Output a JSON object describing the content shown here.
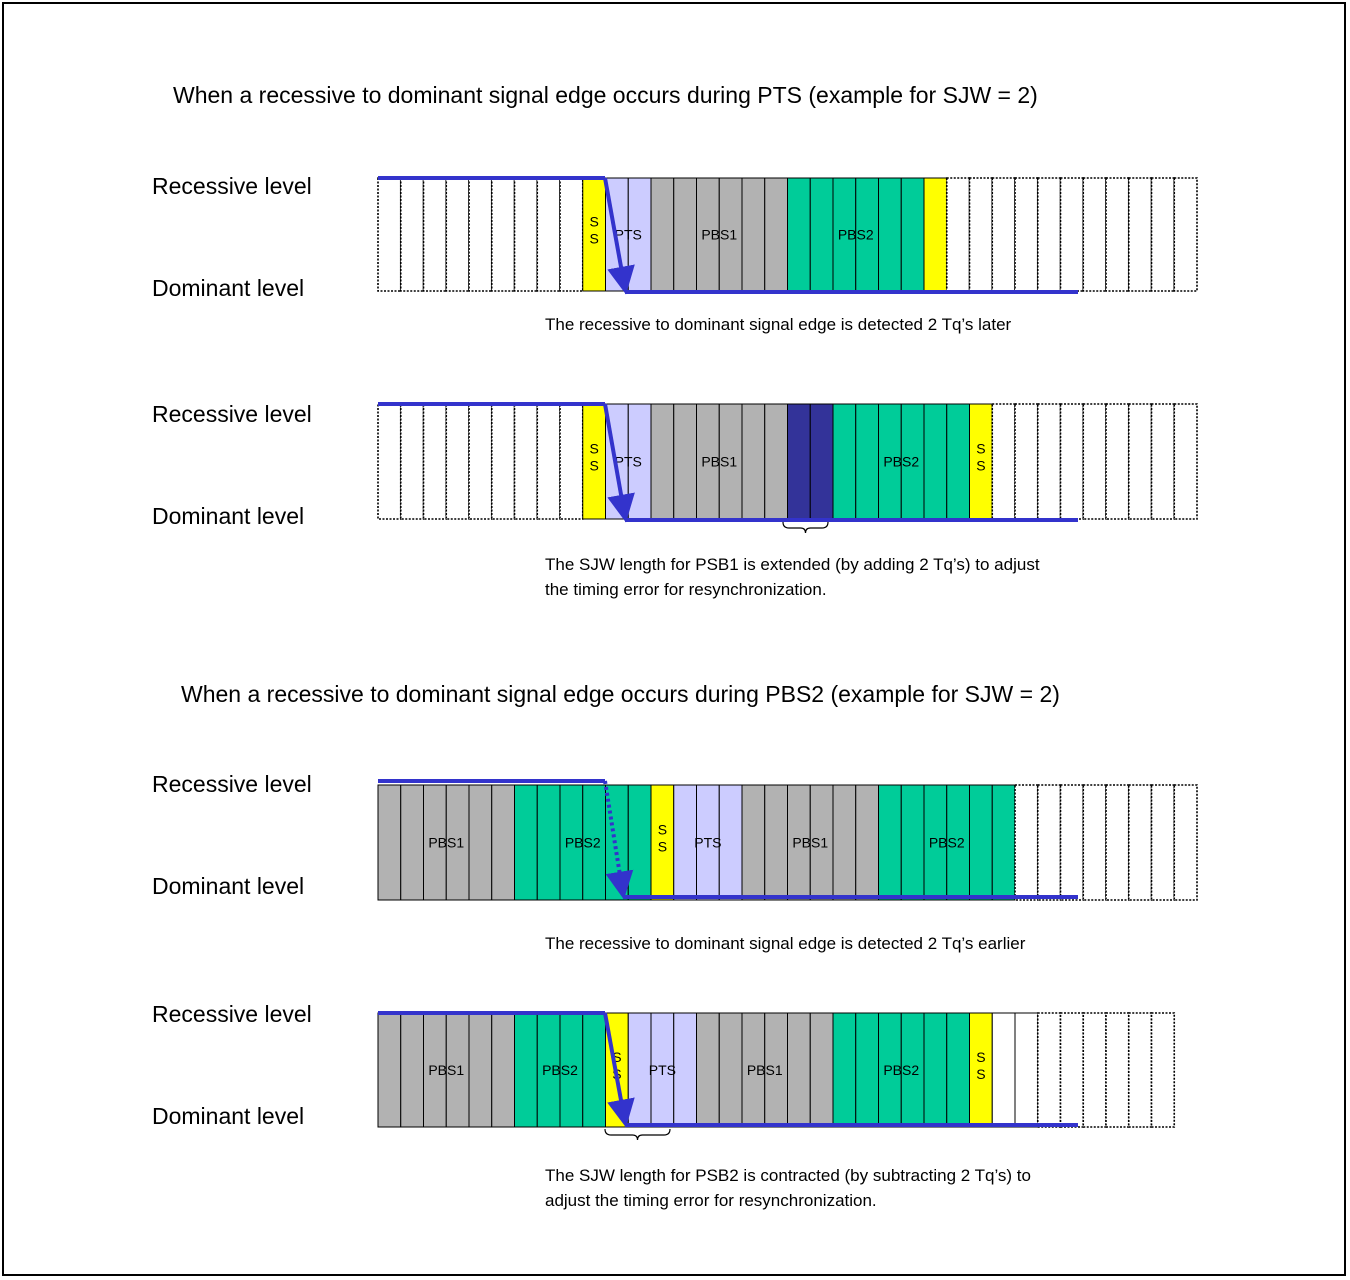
{
  "colors": {
    "recessive": "#ffffff",
    "ss": "#ffff00",
    "pts": "#ccccff",
    "pbs1": "#b2b2b2",
    "pbs2": "#00cc99",
    "sjw_extension": "#333399",
    "signal": "#3333cc"
  },
  "sections": [
    {
      "title": "When a recessive to dominant signal edge occurs during PTS (example for SJW = 2)",
      "panels": [
        {
          "recessive_label": "Recessive level",
          "dominant_label": "Dominant level",
          "caption": "The recessive to dominant signal edge is detected 2 Tq’s later",
          "has_brace": false,
          "segments": [
            {
              "kind": "blank",
              "cells": 9,
              "label": ""
            },
            {
              "kind": "ss",
              "cells": 1,
              "label": "S\nS"
            },
            {
              "kind": "pts",
              "cells": 2,
              "label": "PTS"
            },
            {
              "kind": "pbs1",
              "cells": 6,
              "label": "PBS1"
            },
            {
              "kind": "pbs2",
              "cells": 6,
              "label": "PBS2"
            },
            {
              "kind": "ss",
              "cells": 1,
              "label": ""
            },
            {
              "kind": "blank",
              "cells": 11,
              "label": ""
            }
          ]
        },
        {
          "recessive_label": "Recessive level",
          "dominant_label": "Dominant level",
          "caption": "The SJW length for PSB1 is extended (by adding 2 Tq’s) to adjust\nthe timing error for resynchronization.",
          "has_brace": true,
          "segments": [
            {
              "kind": "blank",
              "cells": 9,
              "label": ""
            },
            {
              "kind": "ss",
              "cells": 1,
              "label": "S\nS"
            },
            {
              "kind": "pts",
              "cells": 2,
              "label": "PTS"
            },
            {
              "kind": "pbs1",
              "cells": 6,
              "label": "PBS1"
            },
            {
              "kind": "sjw",
              "cells": 2,
              "label": ""
            },
            {
              "kind": "pbs2",
              "cells": 6,
              "label": "PBS2"
            },
            {
              "kind": "ss",
              "cells": 1,
              "label": "S\nS"
            },
            {
              "kind": "blank",
              "cells": 9,
              "label": ""
            }
          ]
        }
      ]
    },
    {
      "title": "When a recessive to dominant signal edge occurs during PBS2 (example for SJW = 2)",
      "panels": [
        {
          "recessive_label": "Recessive level",
          "dominant_label": "Dominant level",
          "caption": "The recessive to dominant signal edge is detected 2 Tq’s earlier",
          "has_brace": false,
          "segments": [
            {
              "kind": "pbs1",
              "cells": 6,
              "label": "PBS1"
            },
            {
              "kind": "pbs2",
              "cells": 6,
              "label": "PBS2"
            },
            {
              "kind": "ss",
              "cells": 1,
              "label": "S\nS"
            },
            {
              "kind": "pts",
              "cells": 3,
              "label": "PTS"
            },
            {
              "kind": "pbs1",
              "cells": 6,
              "label": "PBS1"
            },
            {
              "kind": "pbs2",
              "cells": 6,
              "label": "PBS2"
            },
            {
              "kind": "blank",
              "cells": 8,
              "label": ""
            }
          ]
        },
        {
          "recessive_label": "Recessive level",
          "dominant_label": "Dominant level",
          "caption": "The SJW length for PSB2 is contracted (by subtracting 2 Tq’s) to\nadjust the timing error for resynchronization.",
          "has_brace": true,
          "segments": [
            {
              "kind": "pbs1",
              "cells": 6,
              "label": "PBS1"
            },
            {
              "kind": "pbs2",
              "cells": 4,
              "label": "PBS2"
            },
            {
              "kind": "ss",
              "cells": 1,
              "label": "S\nS"
            },
            {
              "kind": "pts",
              "cells": 3,
              "label": "PTS"
            },
            {
              "kind": "pbs1",
              "cells": 6,
              "label": "PBS1"
            },
            {
              "kind": "pbs2",
              "cells": 6,
              "label": "PBS2"
            },
            {
              "kind": "ss",
              "cells": 1,
              "label": "S\nS"
            },
            {
              "kind": "blank",
              "cells": 8,
              "label": ""
            }
          ]
        }
      ]
    }
  ]
}
